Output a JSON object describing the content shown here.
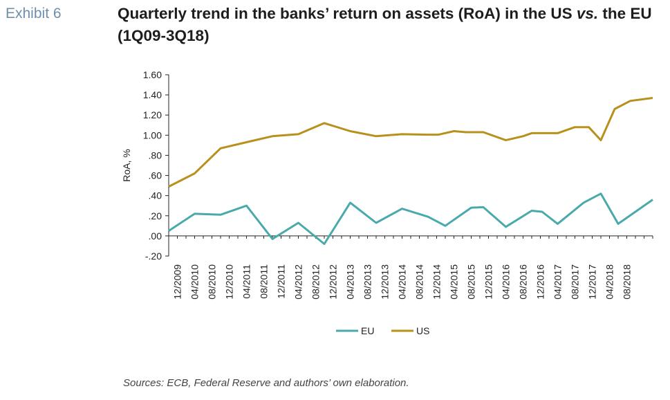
{
  "header": {
    "exhibit": "Exhibit 6",
    "title_main": "Quarterly trend in the banks’ return on assets (RoA) in the US ",
    "title_italic": "vs.",
    "title_end": " the EU (1Q09-3Q18)"
  },
  "source": "Sources: ECB, Federal Reserve and authors’ own elaboration.",
  "colors": {
    "EU": "#4aaaab",
    "US": "#b8901c",
    "axis": "#222222"
  },
  "chart_data": {
    "type": "line",
    "ylabel": "RoA, %",
    "xlabel": "",
    "ylim": [
      -0.2,
      1.6
    ],
    "yticks": [
      -0.2,
      0.0,
      0.2,
      0.4,
      0.6,
      0.8,
      1.0,
      1.2,
      1.4,
      1.6
    ],
    "ytick_labels": [
      "-.20",
      ".00",
      ".20",
      ".40",
      ".60",
      ".80",
      "1.00",
      "1.20",
      "1.40",
      "1.60"
    ],
    "x_labels": [
      "12/2009",
      "04/2010",
      "08/2010",
      "12/2010",
      "04/2011",
      "08/2011",
      "12/2011",
      "04/2012",
      "08/2012",
      "12/2012",
      "04/2013",
      "08/2013",
      "12/2013",
      "04/2014",
      "08/2014",
      "12/2014",
      "04/2015",
      "08/2015",
      "12/2015",
      "04/2016",
      "08/2016",
      "12/2016",
      "04/2017",
      "08/2017",
      "12/2017",
      "04/2018",
      "08/2018"
    ],
    "x": [
      0,
      0.5,
      1,
      1.5,
      2,
      2.5,
      3,
      3.5,
      4,
      4.5,
      5,
      5.5,
      6,
      6.5,
      7,
      7.5,
      8,
      8.5,
      9,
      9.5,
      10,
      10.5,
      11,
      11.5,
      12,
      12.5,
      13,
      13.5,
      14,
      14.5,
      15,
      15.5,
      16,
      16.5,
      17,
      17.5,
      18,
      18.5,
      19,
      19.5,
      20,
      20.5,
      21,
      21.5,
      22,
      22.5,
      23,
      23.5,
      24,
      24.5,
      25,
      25.5,
      26,
      26.5,
      27
    ],
    "series": [
      {
        "name": "EU",
        "points": [
          [
            0,
            0.05
          ],
          [
            1.5,
            0.22
          ],
          [
            3,
            0.21
          ],
          [
            4.5,
            0.3
          ],
          [
            6,
            -0.03
          ],
          [
            7.5,
            0.13
          ],
          [
            9,
            -0.08
          ],
          [
            10.5,
            0.33
          ],
          [
            12,
            0.13
          ],
          [
            13.5,
            0.27
          ],
          [
            15,
            0.19
          ],
          [
            16,
            0.1
          ],
          [
            17.5,
            0.28
          ],
          [
            18.2,
            0.285
          ],
          [
            19.5,
            0.09
          ],
          [
            21,
            0.25
          ],
          [
            21.6,
            0.24
          ],
          [
            22.5,
            0.12
          ],
          [
            24,
            0.33
          ],
          [
            25,
            0.42
          ],
          [
            26,
            0.12
          ],
          [
            27,
            0.24
          ],
          [
            28,
            0.36
          ]
        ]
      },
      {
        "name": "US",
        "points": [
          [
            0,
            0.49
          ],
          [
            1.5,
            0.62
          ],
          [
            3,
            0.87
          ],
          [
            4.5,
            0.93
          ],
          [
            6,
            0.99
          ],
          [
            7.5,
            1.01
          ],
          [
            9,
            1.12
          ],
          [
            10.5,
            1.04
          ],
          [
            12,
            0.99
          ],
          [
            13.5,
            1.01
          ],
          [
            15,
            1.005
          ],
          [
            15.6,
            1.005
          ],
          [
            16.5,
            1.04
          ],
          [
            17.2,
            1.03
          ],
          [
            18.2,
            1.03
          ],
          [
            19.5,
            0.95
          ],
          [
            20.5,
            0.99
          ],
          [
            21,
            1.02
          ],
          [
            22.5,
            1.02
          ],
          [
            23.5,
            1.08
          ],
          [
            24.3,
            1.08
          ],
          [
            25,
            0.95
          ],
          [
            25.8,
            1.26
          ],
          [
            26.7,
            1.34
          ],
          [
            28,
            1.37
          ]
        ]
      }
    ],
    "legend": [
      "EU",
      "US"
    ],
    "legend_position": "bottom",
    "grid": false
  }
}
